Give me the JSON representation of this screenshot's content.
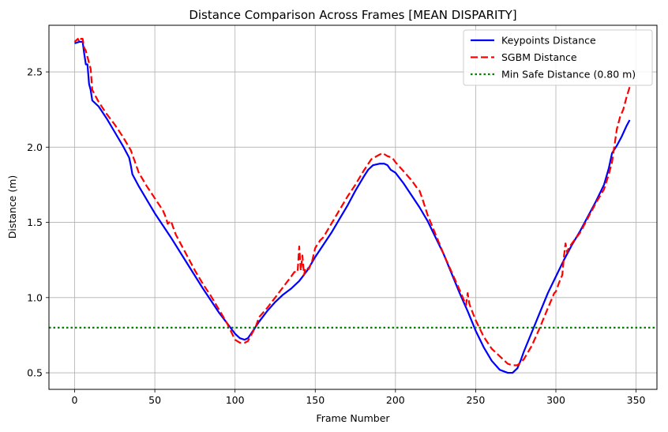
{
  "chart_data": {
    "type": "line",
    "title": "Distance Comparison Across Frames [MEAN DISPARITY]",
    "xlabel": "Frame Number",
    "ylabel": "Distance (m)",
    "xlim": [
      -16,
      363
    ],
    "ylim": [
      0.39,
      2.81
    ],
    "xticks": [
      0,
      50,
      100,
      150,
      200,
      250,
      300,
      350
    ],
    "yticks": [
      0.5,
      1.0,
      1.5,
      2.0,
      2.5
    ],
    "ytick_labels": [
      "0.5",
      "1.0",
      "1.5",
      "2.0",
      "2.5"
    ],
    "grid": true,
    "legend_position": "top-right",
    "series": [
      {
        "name": "Keypoints Distance",
        "color": "#0000ff",
        "style": "solid",
        "x": [
          0,
          3,
          5,
          6,
          7,
          8,
          9,
          10,
          11,
          15,
          20,
          25,
          30,
          34,
          35,
          36,
          40,
          45,
          50,
          60,
          70,
          80,
          90,
          100,
          103,
          106,
          108,
          110,
          115,
          120,
          125,
          130,
          135,
          140,
          145,
          150,
          155,
          160,
          165,
          170,
          175,
          180,
          183,
          186,
          190,
          193,
          195,
          197,
          200,
          205,
          210,
          215,
          220,
          225,
          230,
          235,
          240,
          245,
          250,
          255,
          260,
          265,
          270,
          273,
          276,
          278,
          280,
          285,
          290,
          295,
          300,
          305,
          310,
          315,
          320,
          325,
          330,
          333,
          335,
          338,
          341,
          344,
          346
        ],
        "y": [
          2.69,
          2.7,
          2.7,
          2.62,
          2.55,
          2.55,
          2.42,
          2.38,
          2.31,
          2.27,
          2.19,
          2.1,
          2.01,
          1.93,
          1.88,
          1.82,
          1.74,
          1.65,
          1.56,
          1.4,
          1.23,
          1.06,
          0.9,
          0.76,
          0.73,
          0.72,
          0.73,
          0.76,
          0.84,
          0.91,
          0.97,
          1.02,
          1.06,
          1.11,
          1.18,
          1.27,
          1.35,
          1.43,
          1.52,
          1.61,
          1.71,
          1.8,
          1.85,
          1.88,
          1.89,
          1.89,
          1.88,
          1.85,
          1.83,
          1.76,
          1.68,
          1.6,
          1.51,
          1.4,
          1.29,
          1.16,
          1.03,
          0.91,
          0.78,
          0.67,
          0.58,
          0.52,
          0.5,
          0.5,
          0.53,
          0.58,
          0.64,
          0.77,
          0.9,
          1.03,
          1.14,
          1.25,
          1.35,
          1.44,
          1.54,
          1.64,
          1.75,
          1.86,
          1.96,
          2.01,
          2.07,
          2.14,
          2.18
        ]
      },
      {
        "name": "SGBM Distance",
        "color": "#ff0000",
        "style": "dashed",
        "x": [
          0,
          2,
          3,
          4,
          5,
          6,
          7,
          8,
          10,
          11,
          15,
          20,
          25,
          30,
          35,
          37,
          40,
          45,
          50,
          55,
          57,
          58,
          60,
          63,
          65,
          70,
          75,
          80,
          85,
          90,
          95,
          100,
          103,
          106,
          108,
          110,
          113,
          115,
          120,
          125,
          130,
          135,
          137,
          139,
          140,
          141,
          142,
          143,
          144,
          146,
          148,
          150,
          153,
          155,
          160,
          165,
          170,
          175,
          180,
          185,
          190,
          192,
          195,
          198,
          200,
          205,
          210,
          214,
          215,
          217,
          220,
          225,
          230,
          235,
          240,
          244,
          245,
          246,
          247,
          250,
          255,
          260,
          265,
          270,
          273,
          276,
          280,
          285,
          290,
          295,
          299,
          300,
          302,
          304,
          305,
          306,
          307,
          308,
          310,
          315,
          320,
          325,
          330,
          333,
          335,
          338,
          340,
          342,
          344,
          346
        ],
        "y": [
          2.7,
          2.72,
          2.7,
          2.72,
          2.72,
          2.66,
          2.64,
          2.6,
          2.52,
          2.38,
          2.3,
          2.22,
          2.15,
          2.07,
          1.98,
          1.92,
          1.83,
          1.74,
          1.66,
          1.58,
          1.53,
          1.49,
          1.51,
          1.42,
          1.38,
          1.28,
          1.18,
          1.09,
          1.01,
          0.92,
          0.83,
          0.72,
          0.7,
          0.7,
          0.71,
          0.75,
          0.81,
          0.87,
          0.93,
          1.0,
          1.07,
          1.14,
          1.17,
          1.17,
          1.34,
          1.18,
          1.28,
          1.15,
          1.2,
          1.19,
          1.24,
          1.33,
          1.38,
          1.4,
          1.49,
          1.58,
          1.67,
          1.75,
          1.84,
          1.92,
          1.95,
          1.96,
          1.94,
          1.93,
          1.9,
          1.84,
          1.78,
          1.72,
          1.71,
          1.65,
          1.55,
          1.42,
          1.29,
          1.17,
          1.05,
          0.95,
          1.03,
          0.96,
          0.93,
          0.85,
          0.74,
          0.66,
          0.61,
          0.56,
          0.55,
          0.55,
          0.59,
          0.68,
          0.8,
          0.93,
          1.03,
          1.04,
          1.1,
          1.15,
          1.27,
          1.36,
          1.3,
          1.33,
          1.36,
          1.43,
          1.53,
          1.63,
          1.72,
          1.82,
          1.9,
          2.12,
          2.2,
          2.25,
          2.33,
          2.4
        ]
      },
      {
        "name": "Min Safe Distance (0.80 m)",
        "color": "#008000",
        "style": "dotted",
        "x": [
          -16,
          363
        ],
        "y": [
          0.8,
          0.8
        ]
      }
    ]
  }
}
